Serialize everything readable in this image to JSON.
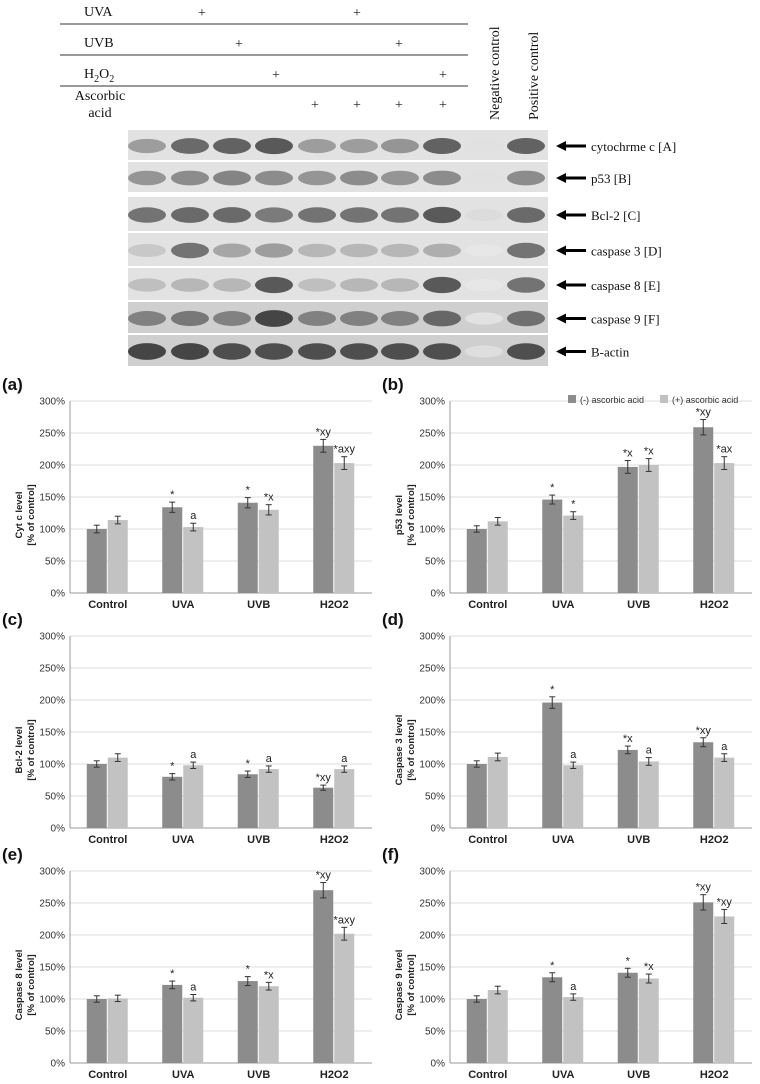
{
  "blot": {
    "treatment_rows": [
      {
        "label": "UVA",
        "marks": [
          "+",
          "",
          "",
          "",
          "+",
          "",
          ""
        ]
      },
      {
        "label": "UVB",
        "marks": [
          "",
          "+",
          "",
          "",
          "",
          "+",
          ""
        ]
      },
      {
        "label_main": "H",
        "label_sub": "2",
        "label_mid": "O",
        "label_sub2": "2",
        "marks": [
          "",
          "",
          "+",
          "",
          "",
          "",
          "+"
        ]
      },
      {
        "label_line1": "Ascorbic",
        "label_line2": "acid",
        "marks": [
          "",
          "",
          "",
          "+",
          "+",
          "+",
          "+"
        ]
      }
    ],
    "control_headers": [
      "Negative control",
      "Positive control"
    ],
    "bands": [
      {
        "label": "cytochrme c  [A]"
      },
      {
        "label": "p53 [B]"
      },
      {
        "label": "Bcl-2 [C]"
      },
      {
        "label": "caspase 3 [D]"
      },
      {
        "label": "caspase 8  [E]"
      },
      {
        "label": "caspase 9 [F]"
      },
      {
        "label": "B-actin"
      }
    ]
  },
  "chart_data": [
    {
      "type": "bar",
      "panel": "(a)",
      "ylabel_line1": "Cyt c level",
      "ylabel_line2": "[% of control]",
      "categories": [
        "Control",
        "UVA",
        "UVB",
        "H2O2"
      ],
      "yticks": [
        "0%",
        "50%",
        "100%",
        "150%",
        "200%",
        "250%",
        "300%"
      ],
      "ylim": [
        0,
        300
      ],
      "series": [
        {
          "values": [
            100,
            134,
            141,
            230
          ],
          "errors": [
            6,
            8,
            8,
            10
          ],
          "labels": [
            "",
            "*",
            "*",
            "*xy"
          ]
        },
        {
          "values": [
            114,
            103,
            130,
            203
          ],
          "errors": [
            6,
            6,
            8,
            10
          ],
          "labels": [
            "",
            "a",
            "*x",
            "*axy"
          ]
        }
      ],
      "colors": [
        "#8c8c8c",
        "#c2c2c2"
      ]
    },
    {
      "type": "bar",
      "panel": "(b)",
      "ylabel_line1": "p53 level",
      "ylabel_line2": "[% of control]",
      "categories": [
        "Control",
        "UVA",
        "UVB",
        "H2O2"
      ],
      "yticks": [
        "0%",
        "50%",
        "100%",
        "150%",
        "200%",
        "250%",
        "300%"
      ],
      "ylim": [
        0,
        300
      ],
      "legend": [
        "(-) ascorbic acid",
        "(+) ascorbic acid"
      ],
      "series": [
        {
          "values": [
            100,
            146,
            197,
            259
          ],
          "errors": [
            5,
            7,
            10,
            12
          ],
          "labels": [
            "",
            "*",
            "*x",
            "*xy"
          ]
        },
        {
          "values": [
            112,
            121,
            200,
            203
          ],
          "errors": [
            6,
            6,
            10,
            10
          ],
          "labels": [
            "",
            "*",
            "*x",
            "*ax"
          ]
        }
      ],
      "colors": [
        "#8c8c8c",
        "#c2c2c2"
      ]
    },
    {
      "type": "bar",
      "panel": "(c)",
      "ylabel_line1": "Bcl-2 level",
      "ylabel_line2": "[% of control]",
      "categories": [
        "Control",
        "UVA",
        "UVB",
        "H2O2"
      ],
      "yticks": [
        "0%",
        "50%",
        "100%",
        "150%",
        "200%",
        "250%",
        "300%"
      ],
      "ylim": [
        0,
        300
      ],
      "series": [
        {
          "values": [
            100,
            80,
            84,
            63
          ],
          "errors": [
            5,
            5,
            5,
            4
          ],
          "labels": [
            "",
            "*",
            "*",
            "*xy"
          ]
        },
        {
          "values": [
            110,
            98,
            92,
            92
          ],
          "errors": [
            6,
            5,
            5,
            5
          ],
          "labels": [
            "",
            "a",
            "a",
            "a"
          ]
        }
      ],
      "colors": [
        "#8c8c8c",
        "#c2c2c2"
      ]
    },
    {
      "type": "bar",
      "panel": "(d)",
      "ylabel_line1": "Caspase 3 level",
      "ylabel_line2": "[% of control]",
      "categories": [
        "Control",
        "UVA",
        "UVB",
        "H2O2"
      ],
      "yticks": [
        "0%",
        "50%",
        "100%",
        "150%",
        "200%",
        "250%",
        "300%"
      ],
      "ylim": [
        0,
        300
      ],
      "series": [
        {
          "values": [
            100,
            196,
            122,
            134
          ],
          "errors": [
            5,
            9,
            6,
            7
          ],
          "labels": [
            "",
            "*",
            "*x",
            "*xy"
          ]
        },
        {
          "values": [
            111,
            98,
            104,
            110
          ],
          "errors": [
            6,
            5,
            6,
            6
          ],
          "labels": [
            "",
            "a",
            "a",
            "a"
          ]
        }
      ],
      "colors": [
        "#8c8c8c",
        "#c2c2c2"
      ]
    },
    {
      "type": "bar",
      "panel": "(e)",
      "ylabel_line1": "Caspase 8 level",
      "ylabel_line2": "[% of control]",
      "categories": [
        "Control",
        "UVA",
        "UVB",
        "H2O2"
      ],
      "yticks": [
        "0%",
        "50%",
        "100%",
        "150%",
        "200%",
        "250%",
        "300%"
      ],
      "ylim": [
        0,
        300
      ],
      "series": [
        {
          "values": [
            100,
            122,
            128,
            270
          ],
          "errors": [
            5,
            6,
            7,
            12
          ],
          "labels": [
            "",
            "*",
            "*",
            "*xy"
          ]
        },
        {
          "values": [
            101,
            102,
            120,
            202
          ],
          "errors": [
            5,
            5,
            6,
            10
          ],
          "labels": [
            "",
            "a",
            "*x",
            "*axy"
          ]
        }
      ],
      "colors": [
        "#8c8c8c",
        "#c2c2c2"
      ]
    },
    {
      "type": "bar",
      "panel": "(f)",
      "ylabel_line1": "Caspase 9 level",
      "ylabel_line2": "[% of control]",
      "categories": [
        "Control",
        "UVA",
        "UVB",
        "H2O2"
      ],
      "yticks": [
        "0%",
        "50%",
        "100%",
        "150%",
        "200%",
        "250%",
        "300%"
      ],
      "ylim": [
        0,
        300
      ],
      "series": [
        {
          "values": [
            100,
            134,
            141,
            251
          ],
          "errors": [
            5,
            7,
            7,
            12
          ],
          "labels": [
            "",
            "*",
            "*",
            "*xy"
          ]
        },
        {
          "values": [
            114,
            103,
            132,
            229
          ],
          "errors": [
            6,
            5,
            7,
            11
          ],
          "labels": [
            "",
            "a",
            "*x",
            "*xy"
          ]
        }
      ],
      "colors": [
        "#8c8c8c",
        "#c2c2c2"
      ]
    }
  ]
}
